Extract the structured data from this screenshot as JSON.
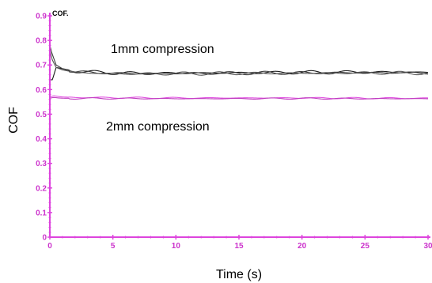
{
  "chart_data": {
    "type": "line",
    "title": "",
    "xlabel": "Time (s)",
    "ylabel": "COF",
    "y_unit_label": "COF.",
    "xlim": [
      0,
      30
    ],
    "ylim": [
      0,
      0.9
    ],
    "x_ticks": [
      "0",
      "5",
      "10",
      "15",
      "20",
      "25",
      "30"
    ],
    "y_ticks": [
      "0",
      "0.1",
      "0.2",
      "0.3",
      "0.4",
      "0.5",
      "0.6",
      "0.7",
      "0.8",
      "0.9"
    ],
    "grid": false,
    "legend": "none",
    "annotations": [
      "1mm compression",
      "2mm compression"
    ],
    "series": [
      {
        "color": "#1a1a1a",
        "x": [
          0,
          0.2,
          0.5,
          1,
          1.5,
          2,
          3,
          5,
          7,
          10,
          15,
          20,
          25,
          30
        ],
        "y": [
          0.64,
          0.64,
          0.69,
          0.685,
          0.68,
          0.675,
          0.672,
          0.668,
          0.666,
          0.667,
          0.668,
          0.67,
          0.671,
          0.67
        ]
      },
      {
        "color": "#3a3a3a",
        "x": [
          0,
          0.15,
          0.5,
          1,
          1.5,
          2,
          3,
          5,
          7,
          10,
          15,
          20,
          25,
          30
        ],
        "y": [
          0.78,
          0.75,
          0.7,
          0.685,
          0.678,
          0.672,
          0.67,
          0.667,
          0.665,
          0.666,
          0.667,
          0.668,
          0.669,
          0.668
        ]
      },
      {
        "color": "#555555",
        "x": [
          0,
          0.2,
          0.5,
          1,
          1.5,
          2,
          3,
          5,
          7,
          10,
          15,
          20,
          25,
          30
        ],
        "y": [
          0.76,
          0.72,
          0.69,
          0.68,
          0.675,
          0.67,
          0.668,
          0.665,
          0.664,
          0.665,
          0.666,
          0.667,
          0.668,
          0.667
        ]
      },
      {
        "color": "#e050e0",
        "x": [
          0,
          0.3,
          0.7,
          1,
          2,
          5,
          10,
          15,
          20,
          25,
          30
        ],
        "y": [
          0.57,
          0.575,
          0.572,
          0.57,
          0.568,
          0.567,
          0.566,
          0.566,
          0.566,
          0.565,
          0.565
        ]
      },
      {
        "color": "#c040c0",
        "x": [
          0,
          0.3,
          0.7,
          1,
          2,
          5,
          10,
          15,
          20,
          25,
          30
        ],
        "y": [
          0.565,
          0.568,
          0.566,
          0.565,
          0.564,
          0.564,
          0.563,
          0.563,
          0.564,
          0.563,
          0.563
        ]
      }
    ],
    "colors": {
      "axis": "#dd44dd",
      "tick_labels": "#cc33cc"
    }
  }
}
